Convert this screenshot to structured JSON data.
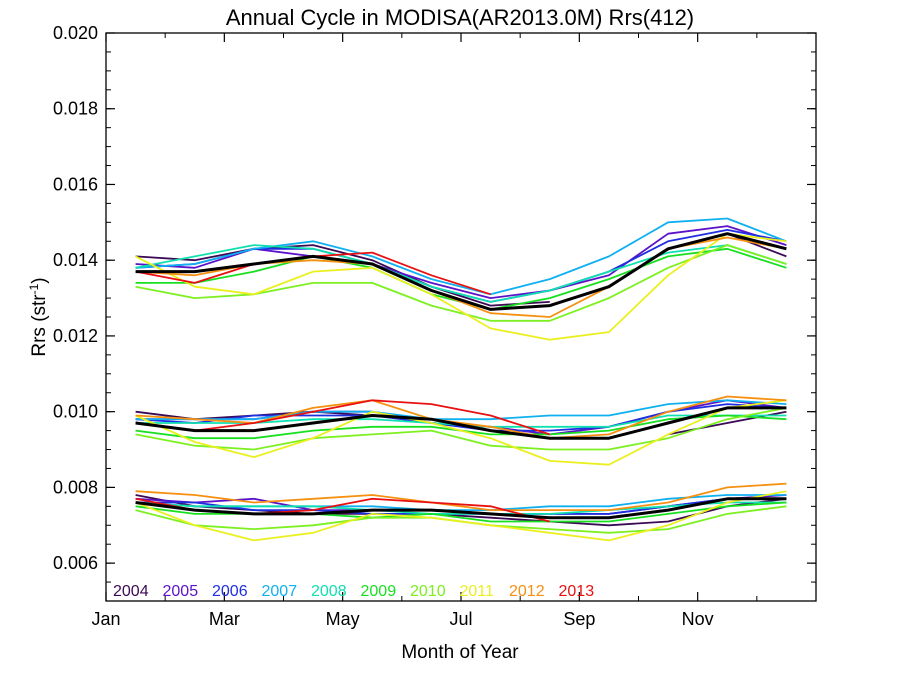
{
  "chart_data": {
    "type": "line",
    "title": "Annual Cycle in MODISA(AR2013.0M) Rrs(412)",
    "xlabel": "Month of Year",
    "ylabel_main": "Rrs (str",
    "ylabel_sup": "-1",
    "ylabel_tail": ")",
    "xlim": [
      0,
      12
    ],
    "ylim": [
      0.005,
      0.02
    ],
    "x_ticks": [
      {
        "x": 0,
        "label": "Jan"
      },
      {
        "x": 2,
        "label": "Mar"
      },
      {
        "x": 4,
        "label": "May"
      },
      {
        "x": 6,
        "label": "Jul"
      },
      {
        "x": 8,
        "label": "Sep"
      },
      {
        "x": 10,
        "label": "Nov"
      }
    ],
    "y_ticks": [
      {
        "y": 0.006,
        "label": "0.006"
      },
      {
        "y": 0.008,
        "label": "0.008"
      },
      {
        "y": 0.01,
        "label": "0.010"
      },
      {
        "y": 0.012,
        "label": "0.012"
      },
      {
        "y": 0.014,
        "label": "0.014"
      },
      {
        "y": 0.016,
        "label": "0.016"
      },
      {
        "y": 0.018,
        "label": "0.018"
      },
      {
        "y": 0.02,
        "label": "0.020"
      }
    ],
    "x": [
      0.5,
      1.5,
      2.5,
      3.5,
      4.5,
      5.5,
      6.5,
      7.5,
      8.5,
      9.5,
      10.5,
      11.5
    ],
    "legend_placement": "bottom-left",
    "series": [
      {
        "name": "2004",
        "color": "#3a0a55",
        "high": [
          0.0141,
          0.014,
          0.0143,
          0.0144,
          0.014,
          0.0133,
          0.0128,
          0.0129,
          null,
          0.0143,
          0.0147,
          0.0141
        ],
        "mid": [
          0.01,
          0.0098,
          0.0099,
          0.01,
          0.0099,
          0.0098,
          0.0095,
          0.0093,
          null,
          0.0094,
          0.0097,
          0.01
        ],
        "low": [
          0.0078,
          0.0075,
          0.0074,
          0.0073,
          0.0073,
          0.0073,
          0.0072,
          0.0071,
          0.007,
          0.0071,
          0.0075,
          0.0077
        ]
      },
      {
        "name": "2005",
        "color": "#5b12c8",
        "high": [
          0.0139,
          0.0138,
          0.0143,
          0.0141,
          0.0139,
          0.0134,
          0.013,
          0.0132,
          0.0136,
          0.0147,
          0.0149,
          0.0144
        ],
        "mid": [
          0.0098,
          0.0098,
          0.0098,
          0.01,
          0.01,
          0.0097,
          0.0096,
          0.0094,
          0.0096,
          0.01,
          0.0103,
          0.0101
        ],
        "low": [
          0.0077,
          0.0076,
          0.0077,
          0.0074,
          0.0074,
          0.0074,
          0.0073,
          0.0073,
          0.0073,
          0.0075,
          0.0077,
          0.0078
        ]
      },
      {
        "name": "2006",
        "color": "#1f2fe0",
        "high": [
          0.0138,
          0.0139,
          0.0143,
          0.0143,
          0.0139,
          0.0133,
          0.0129,
          0.0132,
          0.0137,
          0.0145,
          0.0148,
          0.0145
        ],
        "mid": [
          0.0098,
          0.0097,
          0.0099,
          0.0099,
          0.0099,
          0.0097,
          0.0095,
          0.0095,
          0.0096,
          0.01,
          0.0102,
          0.0101
        ],
        "low": [
          0.0076,
          0.0076,
          0.0074,
          0.0074,
          0.0073,
          0.0073,
          0.0073,
          0.0073,
          0.0073,
          0.0075,
          0.0077,
          0.0077
        ]
      },
      {
        "name": "2007",
        "color": "#10b0f0",
        "high": [
          0.0138,
          0.0139,
          0.0143,
          0.0145,
          0.0141,
          0.0135,
          0.0131,
          0.0135,
          0.0141,
          0.015,
          0.0151,
          0.0145
        ],
        "mid": [
          0.0098,
          0.0098,
          0.0098,
          0.01,
          0.01,
          0.0098,
          0.0098,
          0.0099,
          0.0099,
          0.0102,
          0.0103,
          0.0102
        ],
        "low": [
          0.0076,
          0.0075,
          0.0075,
          0.0075,
          0.0075,
          0.0074,
          0.0074,
          0.0075,
          0.0075,
          0.0077,
          0.0078,
          0.0078
        ]
      },
      {
        "name": "2008",
        "color": "#10e0b0",
        "high": [
          0.0138,
          0.0141,
          0.0144,
          0.0143,
          0.0139,
          0.0133,
          0.0129,
          0.0132,
          0.0137,
          0.0142,
          0.0144,
          0.0139
        ],
        "mid": [
          0.0097,
          0.0097,
          0.0097,
          0.0098,
          0.0098,
          0.0097,
          0.0096,
          0.0096,
          0.0096,
          0.0099,
          0.0099,
          0.0099
        ],
        "low": [
          0.0076,
          0.0075,
          0.0075,
          0.0075,
          0.0074,
          0.0073,
          0.0073,
          0.0073,
          0.0074,
          0.0075,
          0.0076,
          0.0076
        ]
      },
      {
        "name": "2009",
        "color": "#18e020",
        "high": [
          0.0134,
          0.0134,
          0.0137,
          0.0141,
          0.0138,
          0.0131,
          0.0127,
          0.013,
          0.0135,
          0.0141,
          0.0143,
          0.0138
        ],
        "mid": [
          0.0095,
          0.0093,
          0.0093,
          0.0095,
          0.0096,
          0.0096,
          0.0094,
          0.0094,
          0.0095,
          0.0098,
          0.0099,
          0.0098
        ],
        "low": [
          0.0075,
          0.0073,
          0.0073,
          0.0073,
          0.0072,
          0.0073,
          0.0071,
          0.0071,
          0.0071,
          0.0073,
          0.0075,
          0.0076
        ]
      },
      {
        "name": "2010",
        "color": "#7cf020",
        "high": [
          0.0133,
          0.013,
          0.0131,
          0.0134,
          0.0134,
          0.0128,
          0.0124,
          0.0124,
          0.013,
          0.0138,
          0.0144,
          0.0139
        ],
        "mid": [
          0.0094,
          0.0091,
          0.009,
          0.0093,
          0.0094,
          0.0095,
          0.0091,
          0.009,
          0.009,
          0.0093,
          0.0098,
          0.0101
        ],
        "low": [
          0.0074,
          0.007,
          0.0069,
          0.007,
          0.0072,
          0.0072,
          0.007,
          0.0069,
          0.0068,
          0.0069,
          0.0073,
          0.0075
        ]
      },
      {
        "name": "2011",
        "color": "#eaf020",
        "high": [
          0.0141,
          0.0133,
          0.0131,
          0.0137,
          0.0138,
          0.0131,
          0.0122,
          0.0119,
          0.0121,
          0.0136,
          0.0147,
          0.0145
        ],
        "mid": [
          0.0099,
          0.0092,
          0.0088,
          0.0093,
          0.01,
          0.0097,
          0.0093,
          0.0087,
          0.0086,
          0.0094,
          0.0101,
          0.0103
        ],
        "low": [
          0.0076,
          0.007,
          0.0066,
          0.0068,
          0.0073,
          0.0072,
          0.007,
          0.0068,
          0.0066,
          0.007,
          0.0076,
          0.0079
        ]
      },
      {
        "name": "2012",
        "color": "#f59010",
        "high": [
          0.0137,
          0.0136,
          0.0139,
          0.014,
          0.0139,
          0.0132,
          0.0126,
          0.0125,
          0.0133,
          0.0143,
          0.0146,
          0.0143
        ],
        "mid": [
          0.0099,
          0.0098,
          0.0097,
          0.0101,
          0.0103,
          0.0098,
          0.0096,
          0.0093,
          0.0094,
          0.01,
          0.0104,
          0.0103
        ],
        "low": [
          0.0079,
          0.0078,
          0.0076,
          0.0077,
          0.0078,
          0.0076,
          0.0074,
          0.0074,
          0.0074,
          0.0076,
          0.008,
          0.0081
        ]
      },
      {
        "name": "2013",
        "color": "#e81010",
        "high": [
          0.0137,
          0.0134,
          0.0139,
          0.0141,
          0.0142,
          0.0136,
          0.0131,
          null,
          null,
          null,
          null,
          null
        ],
        "mid": [
          0.0097,
          0.0095,
          0.0097,
          0.01,
          0.0103,
          0.0102,
          0.0099,
          0.0094,
          null,
          null,
          null,
          null
        ],
        "low": [
          0.0077,
          0.0074,
          0.0073,
          0.0074,
          0.0077,
          0.0076,
          0.0075,
          0.0071,
          null,
          null,
          null,
          null
        ]
      },
      {
        "name": "",
        "color": "#000000",
        "high": [
          0.0137,
          0.0137,
          0.0139,
          0.0141,
          0.0139,
          0.0132,
          0.0127,
          0.0128,
          0.0133,
          0.0143,
          0.0147,
          0.0143
        ],
        "mid": [
          0.0097,
          0.0095,
          0.0095,
          0.0097,
          0.0099,
          0.0098,
          0.0095,
          0.0093,
          0.0093,
          0.0097,
          0.0101,
          0.0101
        ],
        "low": [
          0.0076,
          0.0074,
          0.0073,
          0.0073,
          0.0074,
          0.0074,
          0.0073,
          0.0072,
          0.0072,
          0.0074,
          0.0077,
          0.0077
        ]
      }
    ]
  }
}
